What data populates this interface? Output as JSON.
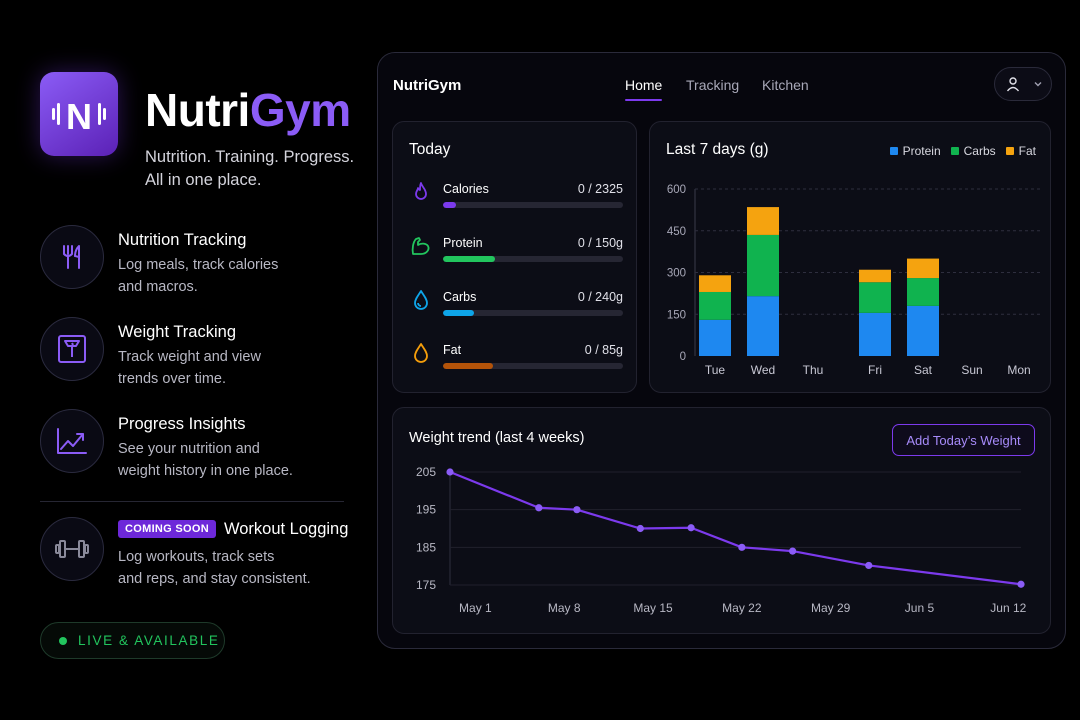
{
  "brand": {
    "name_part1": "Nutri",
    "name_part2": "Gym",
    "tagline_line1": "Nutrition. Training. Progress.",
    "tagline_line2": "All in one place.",
    "icon_letter": "N"
  },
  "features": [
    {
      "title": "Nutrition Tracking",
      "desc_line1": "Log meals, track calories",
      "desc_line2": "and macros.",
      "icon": "fork-knife-icon"
    },
    {
      "title": "Weight Tracking",
      "desc_line1": "Track weight and view",
      "desc_line2": "trends over time.",
      "icon": "scale-icon"
    },
    {
      "title": "Progress Insights",
      "desc_line1": "See your nutrition and",
      "desc_line2": "weight history in one place.",
      "icon": "trend-up-icon"
    },
    {
      "title": "Workout Logging",
      "badge": "COMING SOON",
      "desc_line1": "Log workouts, track sets",
      "desc_line2": "and reps, and stay consistent.",
      "icon": "dumbbell-icon"
    }
  ],
  "status": {
    "label": "LIVE & AVAILABLE",
    "color": "#22c55e"
  },
  "app": {
    "title": "NutriGym",
    "tabs": [
      "Home",
      "Tracking",
      "Kitchen"
    ],
    "active_tab": "Home"
  },
  "today": {
    "title": "Today",
    "macros": [
      {
        "name": "Calories",
        "value": "0 / 2325",
        "fill_fraction": 0.07,
        "color": "#7c3aed",
        "icon": "flame-icon"
      },
      {
        "name": "Protein",
        "value": "0 / 150g",
        "fill_fraction": 0.29,
        "color": "#22c55e",
        "icon": "muscle-icon"
      },
      {
        "name": "Carbs",
        "value": "0 / 240g",
        "fill_fraction": 0.17,
        "color": "#0ea5e9",
        "icon": "drop-icon"
      },
      {
        "name": "Fat",
        "value": "0 / 85g",
        "fill_fraction": 0.28,
        "color": "#b45309",
        "icon": "oil-drop-icon"
      }
    ]
  },
  "weekly": {
    "title": "Last 7 days (g)",
    "legend": [
      {
        "name": "Protein",
        "color": "#1e88f0"
      },
      {
        "name": "Carbs",
        "color": "#10b34f"
      },
      {
        "name": "Fat",
        "color": "#f5a30f"
      }
    ]
  },
  "weight": {
    "title": "Weight trend (last 4 weeks)",
    "add_button": "Add Today’s Weight"
  },
  "chart_data": [
    {
      "type": "bar",
      "stacked": true,
      "title": "Last 7 days (g)",
      "categories": [
        "Tue",
        "Wed",
        "Thu",
        "Fri",
        "Sat",
        "Sun",
        "Mon"
      ],
      "series": [
        {
          "name": "Protein",
          "values": [
            130,
            215,
            0,
            155,
            180,
            0,
            0
          ]
        },
        {
          "name": "Carbs",
          "values": [
            100,
            220,
            0,
            110,
            100,
            0,
            0
          ]
        },
        {
          "name": "Fat",
          "values": [
            60,
            100,
            0,
            45,
            70,
            0,
            0
          ]
        }
      ],
      "yticks": [
        0,
        150,
        300,
        450,
        600
      ],
      "ylim": [
        0,
        600
      ],
      "grid": true,
      "legend_position": "top-right"
    },
    {
      "type": "line",
      "title": "Weight trend (last 4 weeks)",
      "x": [
        "2024-04-29",
        "2024-05-06",
        "2024-05-09",
        "2024-05-14",
        "2024-05-18",
        "2024-05-22",
        "2024-05-26",
        "2024-06-01",
        "2024-06-13"
      ],
      "y": [
        205,
        195.5,
        195,
        190,
        190.2,
        185,
        184,
        180.2,
        175.2
      ],
      "xticks": [
        "May 1",
        "May 8",
        "May 15",
        "May 22",
        "May 29",
        "Jun 5",
        "Jun 12"
      ],
      "yticks": [
        175,
        185,
        195,
        205
      ],
      "line_color": "#7c3aed",
      "grid": true
    }
  ]
}
